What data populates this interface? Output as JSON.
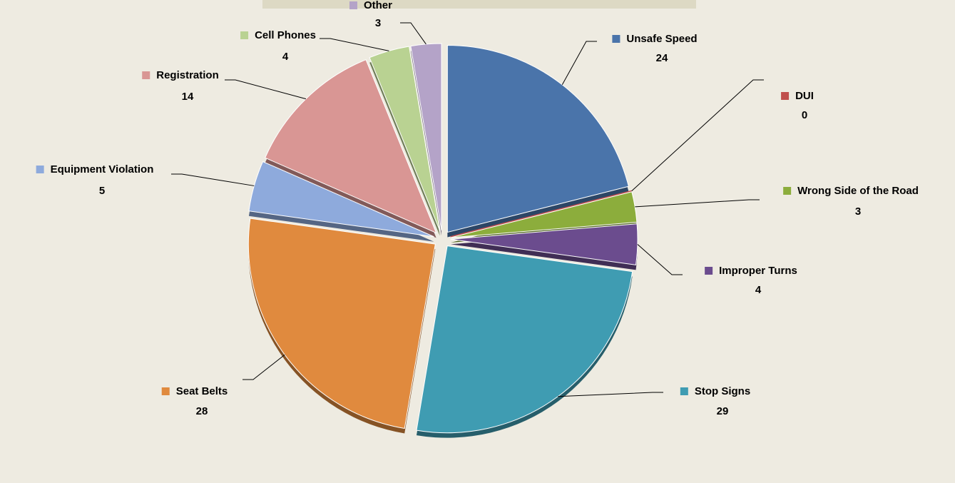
{
  "chart_data": {
    "type": "pie",
    "categories": [
      "Unsafe Speed",
      "DUI",
      "Wrong Side of the Road",
      "Improper Turns",
      "Stop Signs",
      "Seat Belts",
      "Equipment Violation",
      "Registration",
      "Cell Phones",
      "Other"
    ],
    "values": [
      24,
      0,
      3,
      4,
      29,
      28,
      5,
      14,
      4,
      3
    ],
    "colors": [
      "#4a74aa",
      "#c0504d",
      "#8cad3c",
      "#6b4c8e",
      "#3f9cb2",
      "#e08a3e",
      "#8eaadc",
      "#d99694",
      "#b9d292",
      "#b4a3c8"
    ]
  }
}
